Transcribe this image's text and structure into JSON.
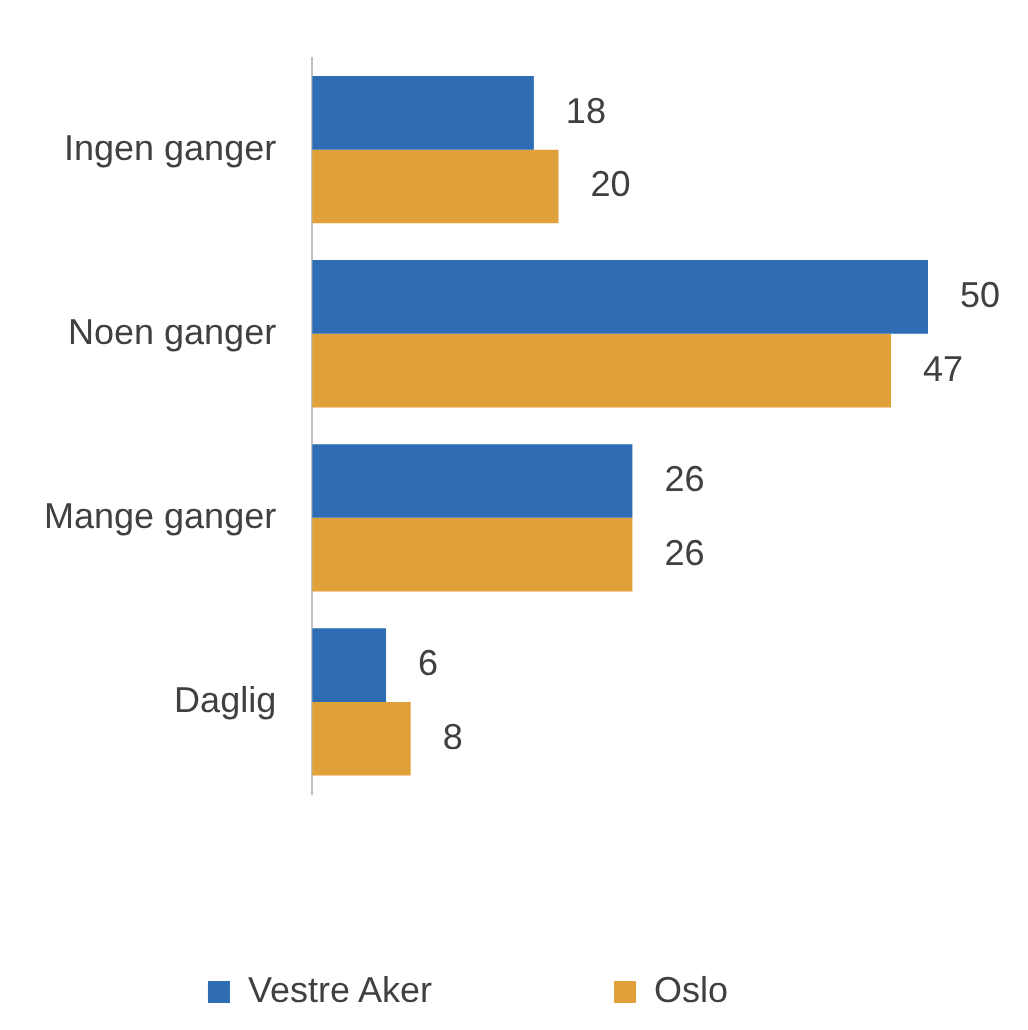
{
  "chart_data": {
    "type": "bar",
    "orientation": "horizontal",
    "categories": [
      "Ingen ganger",
      "Noen ganger",
      "Mange ganger",
      "Daglig"
    ],
    "series": [
      {
        "name": "Vestre Aker",
        "color": "#2e6db4",
        "values": [
          18,
          50,
          26,
          6
        ]
      },
      {
        "name": "Oslo",
        "color": "#e0a03a",
        "values": [
          20,
          47,
          26,
          8
        ]
      }
    ],
    "data_labels": true,
    "legend": "bottom",
    "grid": false
  }
}
